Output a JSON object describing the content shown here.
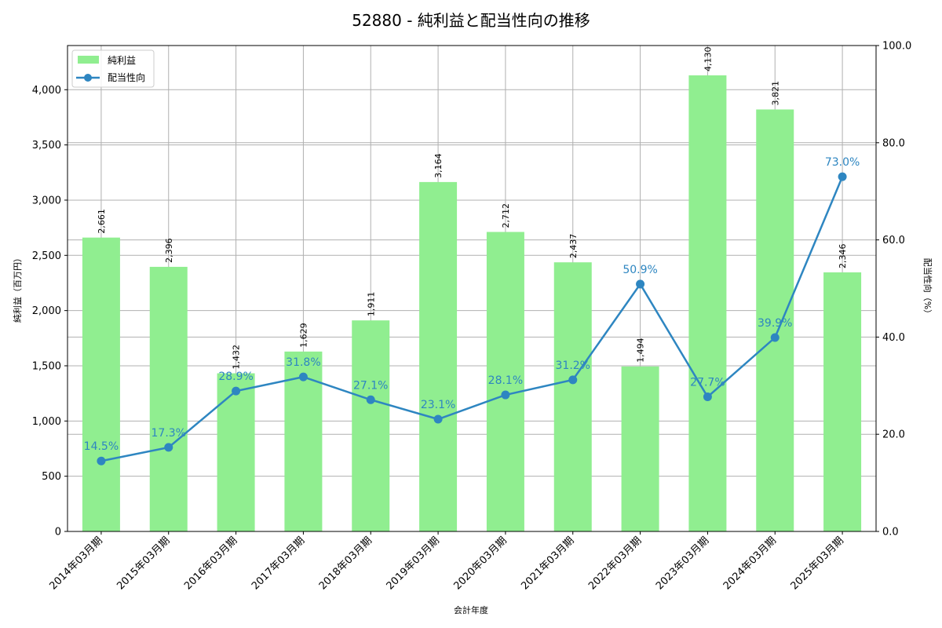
{
  "chart_data": {
    "type": "bar+line",
    "title": "52880 - 純利益と配当性向の推移",
    "xlabel": "会計年度",
    "ylabel_left": "純利益（百万円）",
    "ylabel_right": "配当性向（%）",
    "categories": [
      "2014年03月期",
      "2015年03月期",
      "2016年03月期",
      "2017年03月期",
      "2018年03月期",
      "2019年03月期",
      "2020年03月期",
      "2021年03月期",
      "2022年03月期",
      "2023年03月期",
      "2024年03月期",
      "2025年03月期"
    ],
    "series": [
      {
        "name": "純利益",
        "type": "bar",
        "axis": "left",
        "color": "#90EE90",
        "values": [
          2661,
          2396,
          1432,
          1629,
          1911,
          3164,
          2712,
          2437,
          1494,
          4130,
          3821,
          2346
        ],
        "labels": [
          "2,661",
          "2,396",
          "1,432",
          "1,629",
          "1,911",
          "3,164",
          "2,712",
          "2,437",
          "1,494",
          "4,130",
          "3,821",
          "2,346"
        ]
      },
      {
        "name": "配当性向",
        "type": "line",
        "axis": "right",
        "color": "#2E86C1",
        "values": [
          14.5,
          17.3,
          28.9,
          31.8,
          27.1,
          23.1,
          28.1,
          31.2,
          50.9,
          27.7,
          39.9,
          73.0
        ],
        "labels": [
          "14.5%",
          "17.3%",
          "28.9%",
          "31.8%",
          "27.1%",
          "23.1%",
          "28.1%",
          "31.2%",
          "50.9%",
          "27.7%",
          "39.9%",
          "73.0%"
        ]
      }
    ],
    "ylim_left": [
      0,
      4400
    ],
    "yticks_left": [
      "0",
      "500",
      "1,000",
      "1,500",
      "2,000",
      "2,500",
      "3,000",
      "3,500",
      "4,000"
    ],
    "ylim_right": [
      0,
      100
    ],
    "yticks_right": [
      "0.0",
      "20.0",
      "40.0",
      "60.0",
      "80.0",
      "100.0"
    ],
    "grid": true,
    "legend_position": "upper left"
  }
}
